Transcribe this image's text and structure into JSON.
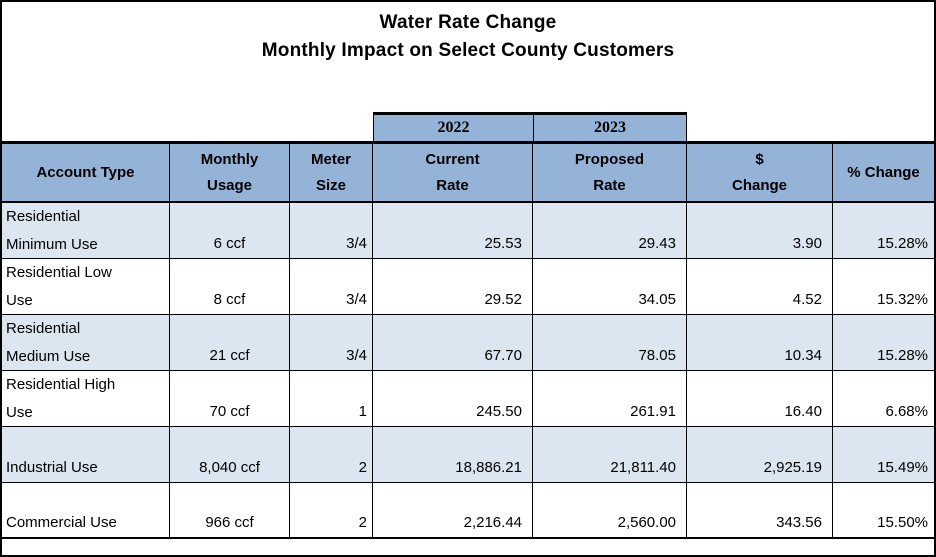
{
  "title": {
    "line1": "Water Rate Change",
    "line2": "Monthly Impact on Select County Customers"
  },
  "year_row": {
    "year_2022": "2022",
    "year_2023": "2023"
  },
  "table": {
    "headers": {
      "account_type": [
        "Account Type",
        ""
      ],
      "monthly_usage": [
        "Monthly",
        "Usage"
      ],
      "meter_size": [
        "Meter",
        "Size"
      ],
      "current_rate": [
        "Current",
        "Rate"
      ],
      "proposed_rate": [
        "Proposed",
        "Rate"
      ],
      "dollar_change": [
        "$",
        "Change"
      ],
      "pct_change": [
        "% Change",
        ""
      ]
    },
    "rows": [
      {
        "account_lines": [
          "Residential",
          "Minimum Use"
        ],
        "usage": "6 ccf",
        "meter": "3/4",
        "current": "25.53",
        "proposed": "29.43",
        "change": "3.90",
        "pct": "15.28%"
      },
      {
        "account_lines": [
          "Residential Low",
          "Use"
        ],
        "usage": "8 ccf",
        "meter": "3/4",
        "current": "29.52",
        "proposed": "34.05",
        "change": "4.52",
        "pct": "15.32%"
      },
      {
        "account_lines": [
          "Residential",
          "Medium Use"
        ],
        "usage": "21 ccf",
        "meter": "3/4",
        "current": "67.70",
        "proposed": "78.05",
        "change": "10.34",
        "pct": "15.28%"
      },
      {
        "account_lines": [
          "Residential High",
          "Use"
        ],
        "usage": "70 ccf",
        "meter": "1",
        "current": "245.50",
        "proposed": "261.91",
        "change": "16.40",
        "pct": "6.68%"
      },
      {
        "account_lines": [
          "Industrial Use"
        ],
        "usage": "8,040 ccf",
        "meter": "2",
        "current": "18,886.21",
        "proposed": "21,811.40",
        "change": "2,925.19",
        "pct": "15.49%"
      },
      {
        "account_lines": [
          "Commercial Use"
        ],
        "usage": "966 ccf",
        "meter": "2",
        "current": "2,216.44",
        "proposed": "2,560.00",
        "change": "343.56",
        "pct": "15.50%"
      }
    ]
  },
  "colors": {
    "header_fill": "#95B3D7",
    "row_alt_fill": "#DCE6F1",
    "border": "#000000",
    "text": "#000000"
  }
}
